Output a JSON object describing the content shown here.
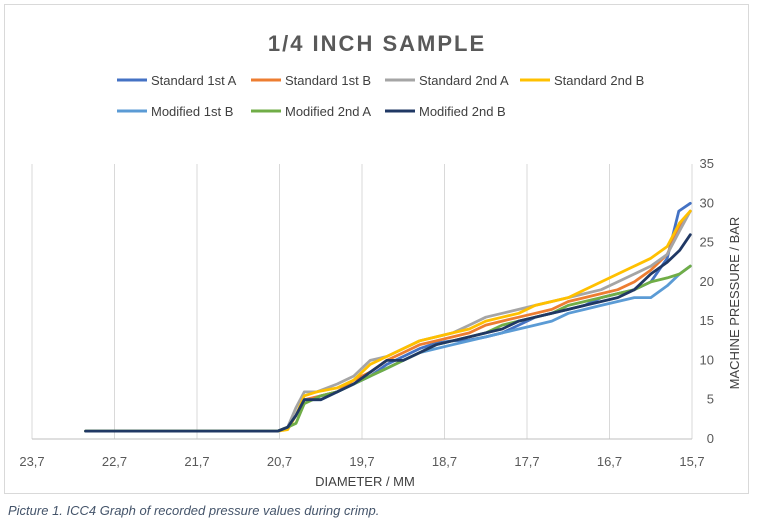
{
  "caption": "Picture 1. ICC4 Graph of recorded pressure values during crimp.",
  "chart_data": {
    "type": "line",
    "title": "1/4 INCH SAMPLE",
    "xlabel": "DIAMETER / MM",
    "ylabel": "MACHINE PRESSURE / BAR",
    "xlim": [
      23.7,
      15.7
    ],
    "ylim": [
      0,
      35
    ],
    "x_ticks": [
      23.7,
      22.7,
      21.7,
      20.7,
      19.7,
      18.7,
      17.7,
      16.7,
      15.7
    ],
    "x_tick_labels": [
      "23,7",
      "22,7",
      "21,7",
      "20,7",
      "19,7",
      "18,7",
      "17,7",
      "16,7",
      "15,7"
    ],
    "y_ticks": [
      0,
      5,
      10,
      15,
      20,
      25,
      30,
      35
    ],
    "y_tick_labels": [
      "0",
      "5",
      "10",
      "15",
      "20",
      "25",
      "30",
      "35"
    ],
    "x_axis_reversed": true,
    "y_axis_position": "right",
    "grid": "vertical",
    "legend_position": "top",
    "series": [
      {
        "name": "Standard 1st A",
        "color": "#4472c4",
        "points": [
          [
            23.05,
            1
          ],
          [
            20.72,
            1
          ],
          [
            20.6,
            1.5
          ],
          [
            20.5,
            3
          ],
          [
            20.4,
            5
          ],
          [
            20.3,
            5
          ],
          [
            20.2,
            5.5
          ],
          [
            20,
            6
          ],
          [
            19.8,
            7
          ],
          [
            19.6,
            8
          ],
          [
            19.4,
            9.5
          ],
          [
            19.2,
            10.5
          ],
          [
            19,
            11.5
          ],
          [
            18.8,
            12.2
          ],
          [
            18.6,
            12.5
          ],
          [
            18.4,
            12.6
          ],
          [
            18.2,
            13
          ],
          [
            18,
            13.5
          ],
          [
            17.8,
            14.5
          ],
          [
            17.6,
            15.5
          ],
          [
            17.4,
            16
          ],
          [
            17.2,
            16.5
          ],
          [
            17,
            17
          ],
          [
            16.8,
            18
          ],
          [
            16.6,
            18.5
          ],
          [
            16.4,
            19
          ],
          [
            16.2,
            20
          ],
          [
            16.0,
            23
          ],
          [
            15.86,
            29
          ],
          [
            15.72,
            30
          ]
        ]
      },
      {
        "name": "Standard 1st B",
        "color": "#ed7d31",
        "points": [
          [
            23.05,
            1
          ],
          [
            20.72,
            1
          ],
          [
            20.6,
            1.5
          ],
          [
            20.5,
            3
          ],
          [
            20.4,
            5
          ],
          [
            20.2,
            5.5
          ],
          [
            20,
            6
          ],
          [
            19.8,
            7.5
          ],
          [
            19.6,
            8.5
          ],
          [
            19.4,
            10
          ],
          [
            19.2,
            11
          ],
          [
            19,
            12
          ],
          [
            18.8,
            12.5
          ],
          [
            18.6,
            13
          ],
          [
            18.4,
            13.5
          ],
          [
            18.2,
            14.5
          ],
          [
            18,
            15
          ],
          [
            17.8,
            15.5
          ],
          [
            17.6,
            16
          ],
          [
            17.4,
            16.5
          ],
          [
            17.2,
            17.5
          ],
          [
            17,
            18
          ],
          [
            16.8,
            18.5
          ],
          [
            16.6,
            19
          ],
          [
            16.4,
            20
          ],
          [
            16.2,
            21.5
          ],
          [
            16,
            23.5
          ],
          [
            15.85,
            27
          ],
          [
            15.72,
            29
          ]
        ]
      },
      {
        "name": "Standard 2nd A",
        "color": "#a5a5a5",
        "points": [
          [
            23.05,
            1
          ],
          [
            20.72,
            1
          ],
          [
            20.6,
            1.5
          ],
          [
            20.5,
            4
          ],
          [
            20.4,
            6
          ],
          [
            20.25,
            6
          ],
          [
            20,
            7
          ],
          [
            19.8,
            8
          ],
          [
            19.6,
            10
          ],
          [
            19.4,
            10.5
          ],
          [
            19.2,
            11.5
          ],
          [
            19,
            12.5
          ],
          [
            18.8,
            13
          ],
          [
            18.6,
            13.5
          ],
          [
            18.4,
            14.5
          ],
          [
            18.2,
            15.5
          ],
          [
            18,
            16
          ],
          [
            17.8,
            16.5
          ],
          [
            17.6,
            17
          ],
          [
            17.4,
            17.5
          ],
          [
            17.2,
            18
          ],
          [
            17,
            18.5
          ],
          [
            16.8,
            19
          ],
          [
            16.6,
            20
          ],
          [
            16.4,
            21
          ],
          [
            16.2,
            22
          ],
          [
            16,
            23.5
          ],
          [
            15.85,
            26.5
          ],
          [
            15.72,
            29
          ]
        ]
      },
      {
        "name": "Standard 2nd B",
        "color": "#ffc000",
        "points": [
          [
            23.05,
            1
          ],
          [
            20.72,
            1
          ],
          [
            20.6,
            1.2
          ],
          [
            20.5,
            3
          ],
          [
            20.4,
            5.5
          ],
          [
            20.25,
            6
          ],
          [
            20,
            6.5
          ],
          [
            19.8,
            7.5
          ],
          [
            19.6,
            9.5
          ],
          [
            19.4,
            10.5
          ],
          [
            19.2,
            11.5
          ],
          [
            19,
            12.5
          ],
          [
            18.8,
            13
          ],
          [
            18.6,
            13.5
          ],
          [
            18.4,
            14
          ],
          [
            18.2,
            15
          ],
          [
            18,
            15.5
          ],
          [
            17.8,
            16
          ],
          [
            17.6,
            17
          ],
          [
            17.4,
            17.5
          ],
          [
            17.2,
            18
          ],
          [
            17,
            19
          ],
          [
            16.8,
            20
          ],
          [
            16.6,
            21
          ],
          [
            16.4,
            22
          ],
          [
            16.2,
            23
          ],
          [
            16,
            24.5
          ],
          [
            15.85,
            27.5
          ],
          [
            15.72,
            29
          ]
        ]
      },
      {
        "name": "Modified 1st B",
        "color": "#5b9bd5",
        "points": [
          [
            23.05,
            1
          ],
          [
            20.72,
            1
          ],
          [
            20.6,
            1.5
          ],
          [
            20.5,
            3
          ],
          [
            20.4,
            5
          ],
          [
            20.2,
            5
          ],
          [
            20,
            6
          ],
          [
            19.8,
            7
          ],
          [
            19.6,
            8
          ],
          [
            19.4,
            9
          ],
          [
            19.2,
            10
          ],
          [
            19,
            11
          ],
          [
            18.8,
            11.5
          ],
          [
            18.6,
            12
          ],
          [
            18.4,
            12.5
          ],
          [
            18.2,
            13
          ],
          [
            18,
            13.5
          ],
          [
            17.8,
            14
          ],
          [
            17.6,
            14.5
          ],
          [
            17.4,
            15
          ],
          [
            17.2,
            16
          ],
          [
            17,
            16.5
          ],
          [
            16.8,
            17
          ],
          [
            16.6,
            17.5
          ],
          [
            16.4,
            18
          ],
          [
            16.2,
            18
          ],
          [
            16,
            19.5
          ],
          [
            15.85,
            21
          ],
          [
            15.72,
            22
          ]
        ]
      },
      {
        "name": "Modified 2nd A",
        "color": "#70ad47",
        "points": [
          [
            23.05,
            1
          ],
          [
            20.72,
            1
          ],
          [
            20.6,
            1.5
          ],
          [
            20.5,
            2
          ],
          [
            20.4,
            4.5
          ],
          [
            20.2,
            5.5
          ],
          [
            20,
            6
          ],
          [
            19.8,
            7
          ],
          [
            19.6,
            8
          ],
          [
            19.4,
            9
          ],
          [
            19.2,
            10
          ],
          [
            19,
            11
          ],
          [
            18.8,
            12
          ],
          [
            18.6,
            12.5
          ],
          [
            18.4,
            13
          ],
          [
            18.2,
            13.5
          ],
          [
            18,
            14.5
          ],
          [
            17.8,
            15
          ],
          [
            17.6,
            15.5
          ],
          [
            17.4,
            16
          ],
          [
            17.2,
            17
          ],
          [
            17,
            17.5
          ],
          [
            16.8,
            18
          ],
          [
            16.6,
            18.5
          ],
          [
            16.4,
            19
          ],
          [
            16.2,
            20
          ],
          [
            16,
            20.5
          ],
          [
            15.85,
            21
          ],
          [
            15.72,
            22
          ]
        ]
      },
      {
        "name": "Modified 2nd B",
        "color": "#203864",
        "points": [
          [
            23.05,
            1
          ],
          [
            20.72,
            1
          ],
          [
            20.6,
            1.5
          ],
          [
            20.5,
            3
          ],
          [
            20.4,
            5
          ],
          [
            20.2,
            5
          ],
          [
            20,
            6
          ],
          [
            19.8,
            7
          ],
          [
            19.6,
            8.5
          ],
          [
            19.4,
            10
          ],
          [
            19.2,
            10
          ],
          [
            19,
            11
          ],
          [
            18.8,
            12
          ],
          [
            18.6,
            12.5
          ],
          [
            18.4,
            13
          ],
          [
            18.2,
            13.5
          ],
          [
            18,
            14
          ],
          [
            17.8,
            15
          ],
          [
            17.6,
            15.5
          ],
          [
            17.4,
            16
          ],
          [
            17.2,
            16.5
          ],
          [
            17,
            17
          ],
          [
            16.8,
            17.5
          ],
          [
            16.6,
            18
          ],
          [
            16.4,
            19
          ],
          [
            16.2,
            21
          ],
          [
            16,
            22.5
          ],
          [
            15.85,
            24
          ],
          [
            15.72,
            26
          ]
        ]
      }
    ]
  }
}
